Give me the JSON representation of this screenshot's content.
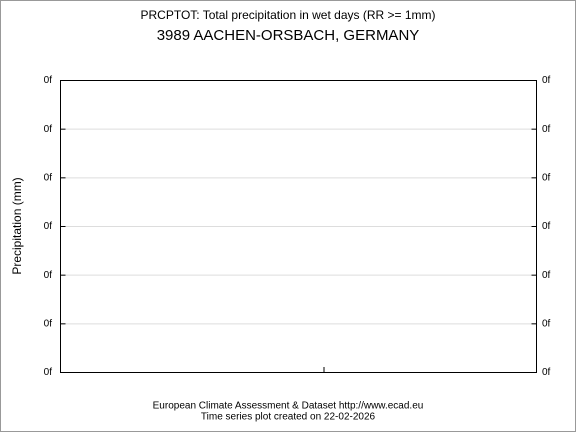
{
  "chart_data": {
    "type": "line",
    "title": "PRCPTOT: Total precipitation in wet days (RR >= 1mm)",
    "subtitle": "3989 AACHEN-ORSBACH, GERMANY",
    "y_label": "Precipitation (mm)",
    "footer": [
      "European Climate Assessment & Dataset  http://www.ecad.eu",
      "Time series plot created on 22-02-2026"
    ],
    "series": [],
    "ylim": [
      0,
      6
    ],
    "yticks": [
      {
        "value": 0,
        "label": "0f"
      },
      {
        "value": 1,
        "label": "0f"
      },
      {
        "value": 2,
        "label": "0f"
      },
      {
        "value": 3,
        "label": "0f"
      },
      {
        "value": 4,
        "label": "0f"
      },
      {
        "value": 5,
        "label": "0f"
      },
      {
        "value": 6,
        "label": "0f"
      }
    ],
    "grid": true,
    "right_axis_labels": true
  }
}
